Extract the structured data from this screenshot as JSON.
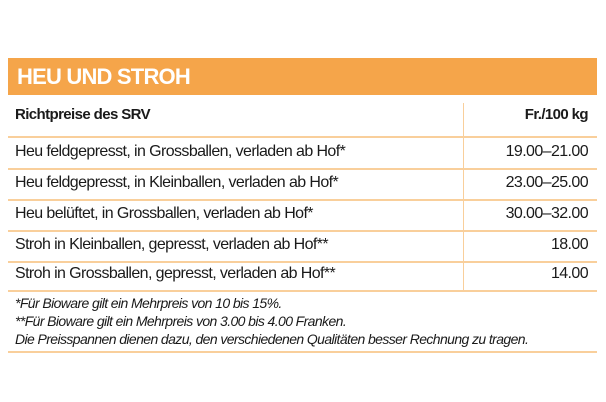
{
  "title": "HEU UND STROH",
  "header": {
    "label": "Richtpreise des SRV",
    "unit": "Fr./100 kg"
  },
  "rows": [
    {
      "label": "Heu feldgepresst, in Grossballen, verladen ab Hof*",
      "price": "19.00–21.00"
    },
    {
      "label": "Heu feldgepresst, in Kleinballen, verladen ab Hof*",
      "price": "23.00–25.00"
    },
    {
      "label": "Heu belüftet, in Grossballen, verladen ab Hof*",
      "price": "30.00–32.00"
    },
    {
      "label": "Stroh in Kleinballen, gepresst, verladen ab Hof**",
      "price": "18.00"
    },
    {
      "label": "Stroh in Grossballen, gepresst, verladen ab Hof**",
      "price": "14.00"
    }
  ],
  "notes": [
    "*Für Bioware gilt ein Mehrpreis von 10 bis 15%.",
    "**Für Bioware gilt ein Mehrpreis von 3.00 bis 4.00 Franken.",
    "Die Preisspannen dienen dazu, den verschiedenen Qualitäten besser Rechnung zu tragen."
  ],
  "colors": {
    "accent": "#f5a54a",
    "rule": "#f9cf9b"
  }
}
